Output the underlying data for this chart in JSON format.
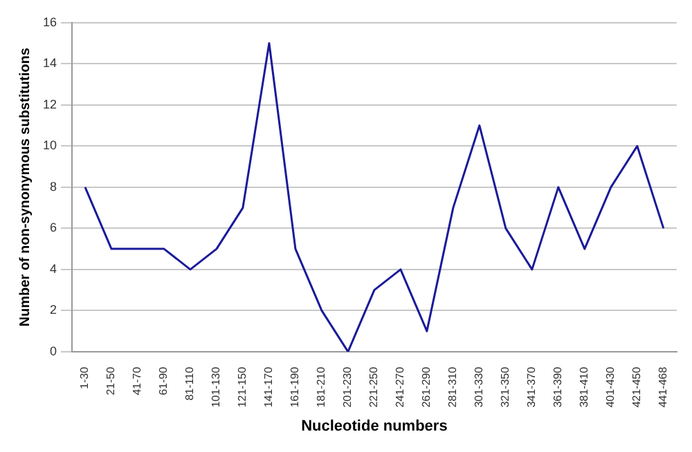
{
  "chart_data": {
    "type": "line",
    "xlabel": "Nucleotide numbers",
    "ylabel": "Number of non-synonymous substitutions",
    "categories": [
      "1-30",
      "21-50",
      "41-70",
      "61-90",
      "81-110",
      "101-130",
      "121-150",
      "141-170",
      "161-190",
      "181-210",
      "201-230",
      "221-250",
      "241-270",
      "261-290",
      "281-310",
      "301-330",
      "321-350",
      "341-370",
      "361-390",
      "381-410",
      "401-430",
      "421-450",
      "441-468"
    ],
    "series": [
      {
        "color": "#1a1a99",
        "values": [
          8,
          5,
          5,
          5,
          4,
          5,
          7,
          15,
          5,
          2,
          0,
          3,
          4,
          1,
          7,
          11,
          6,
          4,
          8,
          5,
          8,
          10,
          6
        ]
      }
    ],
    "ylim": [
      0,
      16
    ],
    "yticks": [
      0,
      2,
      4,
      6,
      8,
      10,
      12,
      14,
      16
    ],
    "grid": "y",
    "legend": false,
    "marker": "none"
  }
}
